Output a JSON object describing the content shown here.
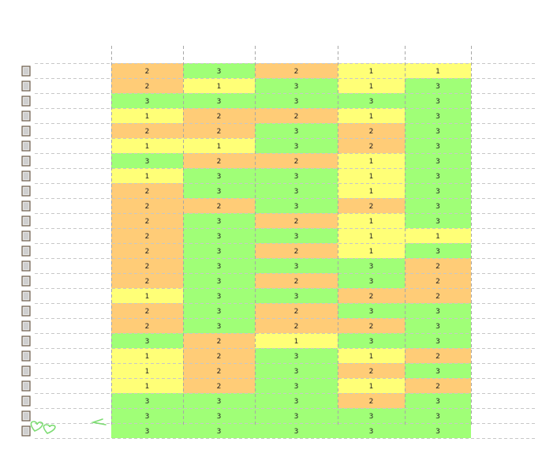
{
  "chart_data": {
    "type": "heatmap",
    "title": "",
    "xlabel": "",
    "ylabel": "",
    "columns": 5,
    "rows": [
      [
        2,
        3,
        2,
        1,
        1
      ],
      [
        2,
        1,
        3,
        1,
        3
      ],
      [
        3,
        3,
        3,
        3,
        3
      ],
      [
        1,
        2,
        2,
        1,
        3
      ],
      [
        2,
        2,
        3,
        2,
        3
      ],
      [
        1,
        1,
        3,
        2,
        3
      ],
      [
        3,
        2,
        2,
        1,
        3
      ],
      [
        1,
        3,
        3,
        1,
        3
      ],
      [
        2,
        3,
        3,
        1,
        3
      ],
      [
        2,
        2,
        3,
        2,
        3
      ],
      [
        2,
        3,
        2,
        1,
        3
      ],
      [
        2,
        3,
        3,
        1,
        1
      ],
      [
        2,
        3,
        2,
        1,
        3
      ],
      [
        2,
        3,
        3,
        3,
        2
      ],
      [
        2,
        3,
        2,
        3,
        2
      ],
      [
        1,
        3,
        3,
        2,
        2
      ],
      [
        2,
        3,
        2,
        3,
        3
      ],
      [
        2,
        3,
        2,
        2,
        3
      ],
      [
        3,
        2,
        1,
        3,
        3
      ],
      [
        1,
        2,
        3,
        1,
        2
      ],
      [
        1,
        2,
        3,
        2,
        3
      ],
      [
        1,
        2,
        3,
        1,
        2
      ],
      [
        3,
        3,
        3,
        2,
        3
      ],
      [
        3,
        3,
        3,
        3,
        3
      ],
      [
        3,
        3,
        3,
        3,
        3
      ]
    ],
    "color_scale": {
      "1": "#ffff77",
      "2": "#ffcc77",
      "3": "#a0ff77"
    },
    "grid": true,
    "legend": "none"
  },
  "icons": {
    "row_thumbnail": "row-thumbnail-icon",
    "hearts": "hearts-icon",
    "arrow": "arrow-left-icon"
  },
  "colors": {
    "grid_line": "#c8c8c8",
    "accent_green": "#7ddc73"
  }
}
